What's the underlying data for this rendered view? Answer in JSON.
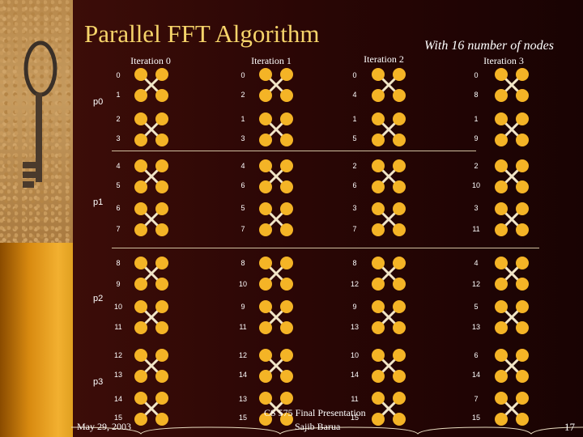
{
  "slide": {
    "title": "Parallel FFT Algorithm",
    "subtitle": "With 16 number of nodes",
    "iteration_labels": [
      "Iteration 0",
      "Iteration 1",
      "Iteration 2",
      "Iteration 3"
    ],
    "processors": [
      "p0",
      "p1",
      "p2",
      "p3"
    ],
    "columns": [
      [
        0,
        1,
        2,
        3,
        4,
        5,
        6,
        7,
        8,
        9,
        10,
        11,
        12,
        13,
        14,
        15
      ],
      [
        0,
        2,
        1,
        3,
        4,
        6,
        5,
        7,
        8,
        10,
        9,
        11,
        12,
        14,
        13,
        15
      ],
      [
        0,
        4,
        1,
        5,
        2,
        6,
        3,
        7,
        8,
        12,
        9,
        13,
        10,
        14,
        11,
        15
      ],
      [
        0,
        8,
        1,
        9,
        2,
        10,
        3,
        11,
        4,
        12,
        5,
        13,
        6,
        14,
        7,
        15
      ]
    ],
    "footer_date": "May 29, 2003",
    "footer_center_line1": "CS 575 Final Presentation",
    "footer_center_line2": "Sajib Barua",
    "page_number": "17",
    "colors": {
      "title": "#f6d46a",
      "node": "#f4b426",
      "edge": "#f2e6c8",
      "text": "#ffffff"
    }
  }
}
